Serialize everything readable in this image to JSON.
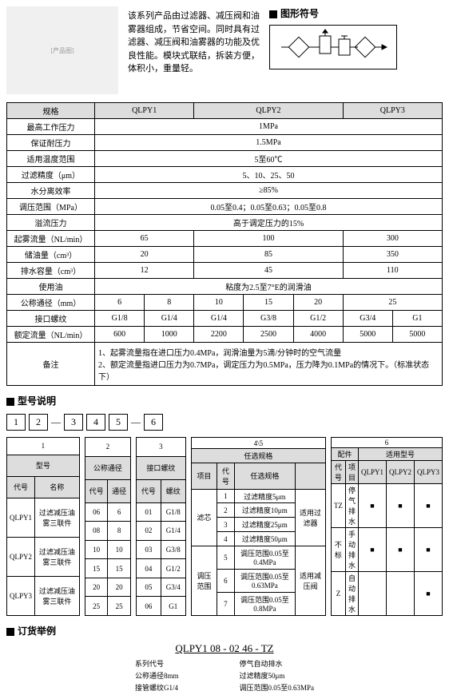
{
  "desc": "该系列产品由过滤器、减压阀和油雾器组成，节省空间。同时具有过滤器、减压阀和油雾器的功能及优良性能。模块式联结，拆装方便，体积小，重量轻。",
  "symTitle": "图形符号",
  "specHdr": [
    "规格",
    "QLPY1",
    "QLPY2",
    "QLPY3"
  ],
  "specRows": [
    {
      "k": "最高工作压力",
      "v": [
        "1MPa"
      ],
      "span": 3
    },
    {
      "k": "保证耐压力",
      "v": [
        "1.5MPa"
      ],
      "span": 3
    },
    {
      "k": "适用温度范围",
      "v": [
        "5至60℃"
      ],
      "span": 3
    },
    {
      "k": "过滤精度（μm）",
      "v": [
        "5、10、25、50"
      ],
      "span": 3
    },
    {
      "k": "水分离效率",
      "v": [
        "≥85%"
      ],
      "span": 3
    },
    {
      "k": "调压范围（MPa）",
      "v": [
        "0.05至0.4；0.05至0.63；0.05至0.8"
      ],
      "span": 3
    },
    {
      "k": "溢流压力",
      "v": [
        "高于调定压力的15%"
      ],
      "span": 3
    },
    {
      "k": "起雾流量（NL/min）",
      "v": [
        "65",
        "100",
        "300"
      ]
    },
    {
      "k": "储油量（cm³）",
      "v": [
        "20",
        "85",
        "350"
      ]
    },
    {
      "k": "排水容量（cm³）",
      "v": [
        "12",
        "45",
        "110"
      ]
    },
    {
      "k": "使用油",
      "v": [
        "粘度为2.5至7°E的润滑油"
      ],
      "span": 3
    }
  ],
  "nomDiaLabel": "公称通径（mm）",
  "nomDia": [
    "6",
    "8",
    "10",
    "15",
    "20",
    "25"
  ],
  "thrLabel": "接口螺纹",
  "thr": [
    "G1/8",
    "G1/4",
    "G1/4",
    "G3/8",
    "G1/2",
    "G3/4",
    "G1"
  ],
  "ratedLabel": "额定流量（NL/min）",
  "rated": [
    "600",
    "1000",
    "2200",
    "2500",
    "4000",
    "5000",
    "5000"
  ],
  "notesLabel": "备注",
  "notes": [
    "1、起雾流量指在进口压力0.4MPa，润滑油量为5滴/分钟时的空气流量",
    "2、额定流量指进口压力为0.7MPa，调定压力为0.5MPa，压力降为0.1MPa的情况下。（标准状态下）"
  ],
  "modelTitle": "型号说明",
  "modelParts": [
    "1",
    "2",
    "3",
    "4",
    "5",
    "6"
  ],
  "t1": {
    "hdr": [
      "代号",
      "名称"
    ],
    "title": "型号",
    "rows": [
      [
        "QLPY1",
        "过滤减压油雾三联件"
      ],
      [
        "QLPY2",
        "过滤减压油雾三联件"
      ],
      [
        "QLPY3",
        "过滤减压油雾三联件"
      ]
    ]
  },
  "t2": {
    "hdr": [
      "代号",
      "通径"
    ],
    "title": "公称通径",
    "rows": [
      [
        "06",
        "6"
      ],
      [
        "08",
        "8"
      ],
      [
        "10",
        "10"
      ],
      [
        "15",
        "15"
      ],
      [
        "20",
        "20"
      ],
      [
        "25",
        "25"
      ]
    ]
  },
  "t3": {
    "hdr": [
      "代号",
      "螺纹"
    ],
    "title": "接口螺纹",
    "rows": [
      [
        "01",
        "G1/8"
      ],
      [
        "02",
        "G1/4"
      ],
      [
        "03",
        "G3/8"
      ],
      [
        "04",
        "G1/2"
      ],
      [
        "05",
        "G3/4"
      ],
      [
        "06",
        "G1"
      ]
    ]
  },
  "t4": {
    "hdr": [
      "项目",
      "代号",
      "任选规格"
    ],
    "title": "任选规格",
    "rows": [
      [
        "滤芯",
        "1",
        "过滤精度5μm",
        "适用过滤器"
      ],
      [
        "",
        "2",
        "过滤精度10μm",
        ""
      ],
      [
        "",
        "3",
        "过滤精度25μm",
        ""
      ],
      [
        "",
        "4",
        "过滤精度50μm",
        ""
      ],
      [
        "调压范围",
        "5",
        "调压范围0.05至0.4MPa",
        "适用减压阀"
      ],
      [
        "",
        "6",
        "调压范围0.05至0.63MPa",
        ""
      ],
      [
        "",
        "7",
        "调压范围0.05至0.8MPa",
        ""
      ]
    ]
  },
  "t6": {
    "hdr": [
      "代号",
      "项目",
      "QLPY1",
      "QLPY2",
      "QLPY3"
    ],
    "title": "配件 / 适用型号",
    "rows": [
      [
        "TZ",
        "停气排水",
        "■",
        "■",
        "■"
      ],
      [
        "不标",
        "手动排水",
        "■",
        "■",
        "■"
      ],
      [
        "Z",
        "自动排水",
        "",
        "",
        "■"
      ]
    ]
  },
  "orderTitle": "订货举例",
  "orderCode": "QLPY1  08 - 02  46 - TZ",
  "orderLbls": {
    "l": [
      "系列代号",
      "公称通径8mm",
      "接管螺纹G1/4"
    ],
    "r": [
      "停气自动排水",
      "过滤精度50μm",
      "调压范围0.05至0.63MPa"
    ]
  }
}
